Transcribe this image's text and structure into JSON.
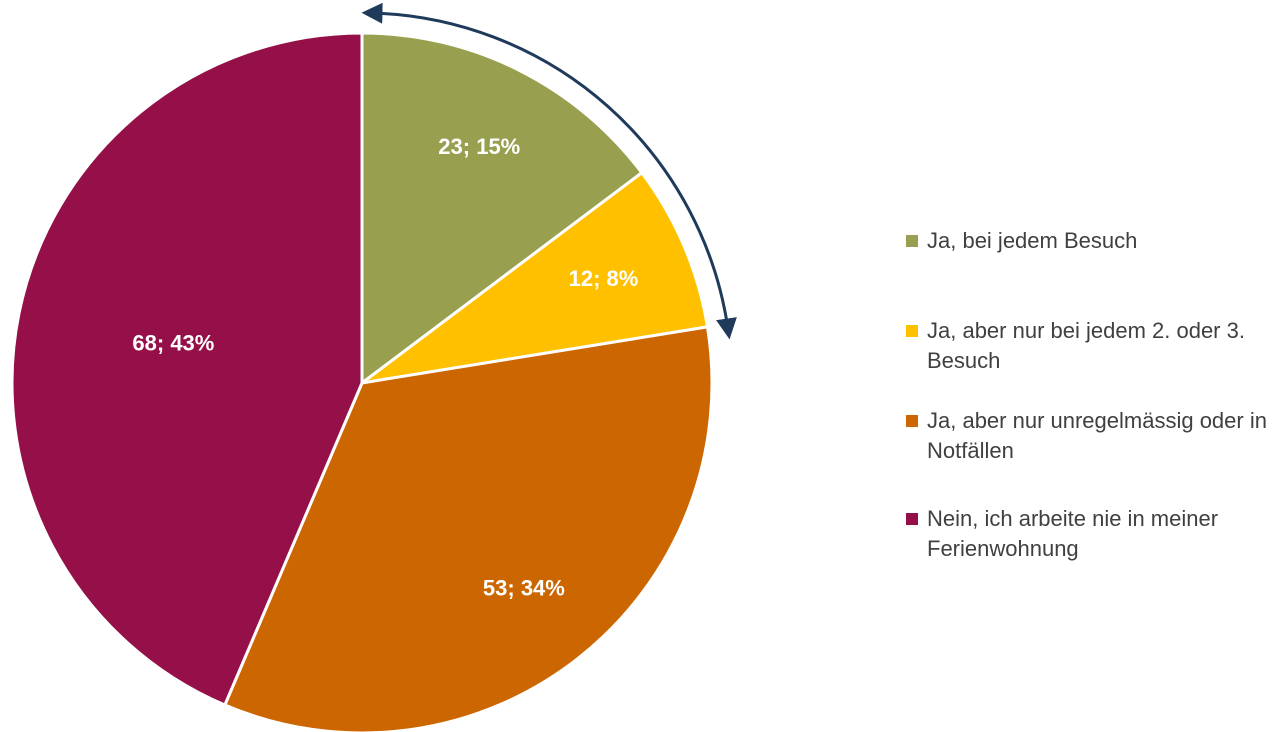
{
  "chart_data": {
    "type": "pie",
    "categories": [
      "Ja, bei jedem Besuch",
      "Ja, aber nur bei jedem 2. oder 3. Besuch",
      "Ja, aber nur unregelmässig oder in Notfällen",
      "Nein, ich arbeite nie in meiner Ferienwohnung"
    ],
    "values": [
      23,
      12,
      53,
      68
    ],
    "value_labels": [
      "23; 15%",
      "12; 8%",
      "53; 34%",
      "68; 43%"
    ],
    "colors": [
      "#98a050",
      "#ffc000",
      "#cc6600",
      "#951048"
    ]
  }
}
